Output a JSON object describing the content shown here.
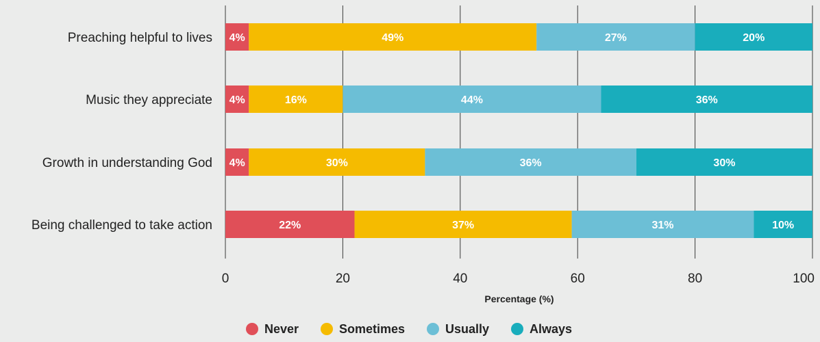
{
  "chart_data": {
    "type": "bar",
    "orientation": "horizontal",
    "stacked": true,
    "categories": [
      "Preaching helpful to lives",
      "Music they appreciate",
      "Growth in understanding God",
      "Being challenged to take action"
    ],
    "series": [
      {
        "name": "Never",
        "color": "#e04f58",
        "values": [
          4,
          4,
          4,
          22
        ],
        "labels": [
          "4%",
          "4%",
          "4%",
          "22%"
        ]
      },
      {
        "name": "Sometimes",
        "color": "#f5bb00",
        "values": [
          49,
          16,
          30,
          37
        ],
        "labels": [
          "49%",
          "16%",
          "30%",
          "37%"
        ]
      },
      {
        "name": "Usually",
        "color": "#6cbfd6",
        "values": [
          27,
          44,
          36,
          31
        ],
        "labels": [
          "27%",
          "44%",
          "36%",
          "31%"
        ]
      },
      {
        "name": "Always",
        "color": "#19adbc",
        "values": [
          20,
          36,
          30,
          10
        ],
        "labels": [
          "20%",
          "36%",
          "30%",
          "10%"
        ]
      }
    ],
    "xlabel": "Percentage (%)",
    "ylabel": "",
    "xlim": [
      0,
      100
    ],
    "xticks": [
      "0",
      "20",
      "40",
      "60",
      "80",
      "100"
    ],
    "grid": "vertical",
    "legend_position": "bottom-center"
  }
}
